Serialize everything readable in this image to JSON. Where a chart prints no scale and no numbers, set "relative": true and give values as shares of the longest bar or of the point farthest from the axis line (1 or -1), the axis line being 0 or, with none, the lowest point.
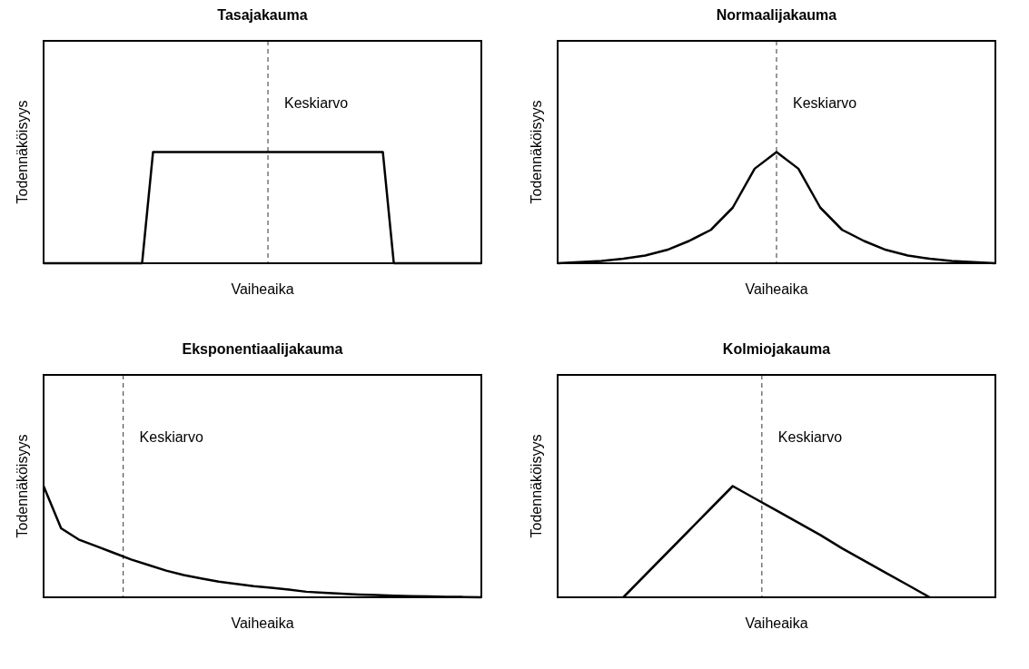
{
  "chart_data": [
    {
      "type": "line",
      "title": "Tasajakauma",
      "xlabel": "Vaiheaika",
      "ylabel": "Todennäköisyys",
      "relative": true,
      "tick_labels": false,
      "marker": "none",
      "line_style": "solid",
      "color": "#000000",
      "categories": [
        null,
        null,
        null,
        null,
        null,
        null,
        null,
        null,
        null,
        null,
        null,
        null,
        null,
        null,
        null,
        null,
        null,
        null,
        null,
        null,
        null,
        null,
        null,
        null,
        null,
        null,
        null,
        null,
        null,
        null,
        null,
        null,
        null,
        null,
        null,
        null,
        null,
        null,
        null,
        null,
        null
      ],
      "values": [
        0,
        0,
        0,
        0,
        0,
        0,
        0,
        0,
        0,
        0,
        1,
        1,
        1,
        1,
        1,
        1,
        1,
        1,
        1,
        1,
        1,
        1,
        1,
        1,
        1,
        1,
        1,
        1,
        1,
        1,
        1,
        1,
        0,
        0,
        0,
        0,
        0,
        0,
        0,
        0,
        0
      ],
      "annotations": [
        "Keskiarvo"
      ]
    },
    {
      "type": "line",
      "title": "Normaalijakauma",
      "xlabel": "Vaiheaika",
      "ylabel": "Todennäköisyys",
      "relative": true,
      "tick_labels": false,
      "marker": "none",
      "line_style": "solid",
      "color": "#000000",
      "categories": [
        null,
        null,
        null,
        null,
        null,
        null,
        null,
        null,
        null,
        null,
        null,
        null,
        null,
        null,
        null,
        null,
        null,
        null,
        null,
        null,
        null
      ],
      "values": [
        0,
        0.01,
        0.02,
        0.04,
        0.07,
        0.12,
        0.2,
        0.3,
        0.5,
        0.85,
        1,
        0.85,
        0.5,
        0.3,
        0.2,
        0.12,
        0.07,
        0.04,
        0.02,
        0.01,
        0
      ],
      "annotations": [
        "Keskiarvo"
      ]
    },
    {
      "type": "line",
      "title": "Eksponentiaalijakauma",
      "xlabel": "Vaiheaika",
      "ylabel": "Todennäköisyys",
      "relative": true,
      "tick_labels": false,
      "marker": "none",
      "line_style": "solid",
      "color": "#000000",
      "categories": [
        null,
        null,
        null,
        null,
        null,
        null,
        null,
        null,
        null,
        null,
        null,
        null,
        null,
        null,
        null,
        null,
        null,
        null,
        null,
        null,
        null,
        null,
        null,
        null,
        null,
        null
      ],
      "values": [
        1,
        0.62,
        0.52,
        0.46,
        0.4,
        0.34,
        0.29,
        0.24,
        0.2,
        0.17,
        0.14,
        0.12,
        0.1,
        0.085,
        0.07,
        0.05,
        0.04,
        0.032,
        0.025,
        0.02,
        0.015,
        0.011,
        0.008,
        0.005,
        0.003,
        0
      ],
      "annotations": [
        "Keskiarvo"
      ]
    },
    {
      "type": "line",
      "title": "Kolmiojakauma",
      "xlabel": "Vaiheaika",
      "ylabel": "Todennäköisyys",
      "relative": true,
      "tick_labels": false,
      "marker": "none",
      "line_style": "solid",
      "color": "#000000",
      "categories": [
        null,
        null,
        null,
        null,
        null,
        null,
        null,
        null,
        null,
        null,
        null,
        null,
        null,
        null,
        null,
        null,
        null,
        null,
        null,
        null,
        null
      ],
      "values": [
        null,
        null,
        null,
        0,
        0.2,
        0.4,
        0.6,
        0.8,
        1,
        0.89,
        0.78,
        0.67,
        0.56,
        0.44,
        0.33,
        0.22,
        0.11,
        0,
        null,
        null,
        null
      ],
      "annotations": [
        "Keskiarvo"
      ]
    }
  ]
}
